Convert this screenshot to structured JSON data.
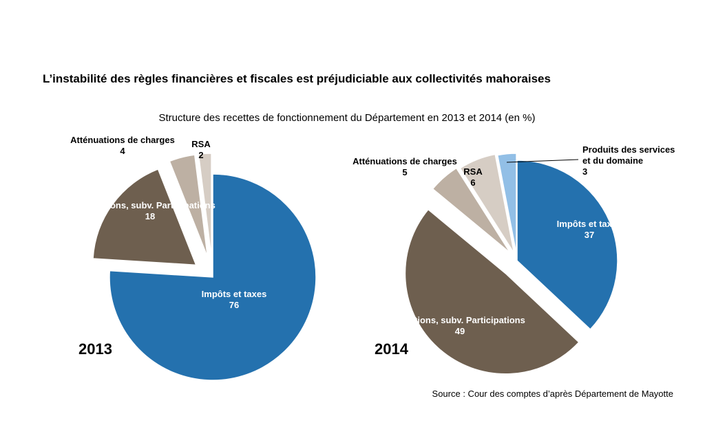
{
  "title": "L’instabilité des règles financières et fiscales est préjudiciable aux collectivités mahoraises",
  "chart_data": [
    {
      "type": "pie",
      "title": "Structure des recettes de fonctionnement du Département en 2013 et 2014 (en %)",
      "year": "2013",
      "slices": [
        {
          "label": "Impôts et taxes",
          "value": 76,
          "color": "#2471ae"
        },
        {
          "label": "Dotations, subv. Participations",
          "value": 18,
          "color": "#6e5f4f"
        },
        {
          "label": "Atténuations de charges",
          "value": 4,
          "color": "#bdb0a3"
        },
        {
          "label": "RSA",
          "value": 2,
          "color": "#d6cdc4"
        }
      ]
    },
    {
      "type": "pie",
      "year": "2014",
      "slices": [
        {
          "label": "Impôts et taxes",
          "value": 37,
          "color": "#2471ae"
        },
        {
          "label": "Dotations, subv. Participations",
          "value": 49,
          "color": "#6e5f4f"
        },
        {
          "label": "Atténuations de charges",
          "value": 5,
          "color": "#bdb0a3"
        },
        {
          "label": "RSA",
          "value": 6,
          "color": "#d6cdc4"
        },
        {
          "label": "Produits des services et du domaine",
          "value": 3,
          "color": "#92bfe6"
        }
      ]
    }
  ],
  "subtitle": "Structure des recettes de fonctionnement du Département en 2013 et 2014 (en %)",
  "source": "Source :  Cour des comptes d’après Département de Mayotte"
}
